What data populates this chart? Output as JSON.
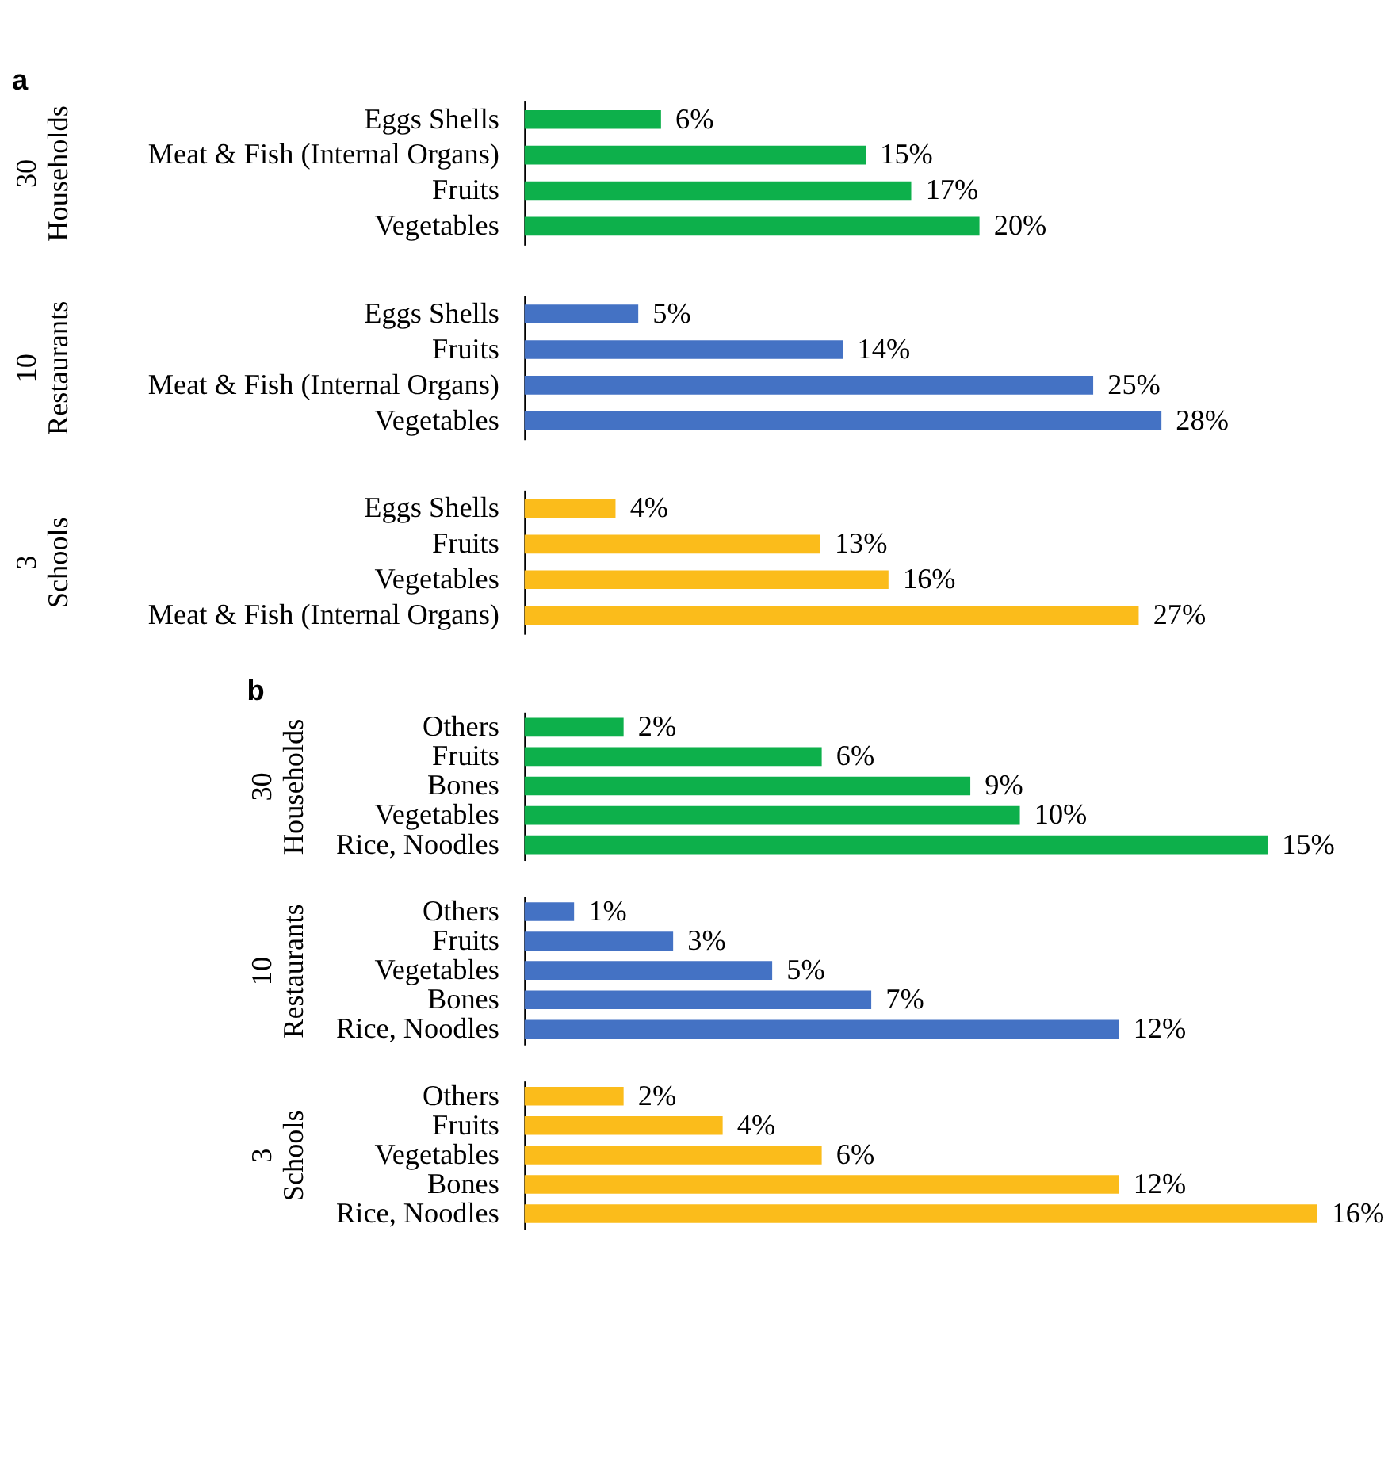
{
  "chart_data": [
    {
      "type": "bar",
      "orientation": "horizontal",
      "title": "a",
      "ylabel": "30 Households",
      "categories": [
        "Eggs Shells",
        "Meat & Fish (Internal Organs)",
        "Fruits",
        "Vegetables"
      ],
      "values": [
        6,
        15,
        17,
        20
      ],
      "value_labels": [
        "6%",
        "15%",
        "17%",
        "20%"
      ],
      "color": "#0db04b"
    },
    {
      "type": "bar",
      "orientation": "horizontal",
      "ylabel": "10 Restaurants",
      "categories": [
        "Eggs Shells",
        "Fruits",
        "Meat & Fish (Internal Organs)",
        "Vegetables"
      ],
      "values": [
        5,
        14,
        25,
        28
      ],
      "value_labels": [
        "5%",
        "14%",
        "25%",
        "28%"
      ],
      "color": "#4472c4"
    },
    {
      "type": "bar",
      "orientation": "horizontal",
      "ylabel": "3 Schools",
      "categories": [
        "Eggs Shells",
        "Fruits",
        "Vegetables",
        "Meat & Fish (Internal Organs)"
      ],
      "values": [
        4,
        13,
        16,
        27
      ],
      "value_labels": [
        "4%",
        "13%",
        "16%",
        "27%"
      ],
      "color": "#fbbc1b"
    },
    {
      "type": "bar",
      "orientation": "horizontal",
      "title": "b",
      "ylabel": "30 Households",
      "categories": [
        "Others",
        "Fruits",
        "Bones",
        "Vegetables",
        "Rice, Noodles"
      ],
      "values": [
        2,
        6,
        9,
        10,
        15
      ],
      "value_labels": [
        "2%",
        "6%",
        "9%",
        "10%",
        "15%"
      ],
      "color": "#0db04b"
    },
    {
      "type": "bar",
      "orientation": "horizontal",
      "ylabel": "10 Restaurants",
      "categories": [
        "Others",
        "Fruits",
        "Vegetables",
        "Bones",
        "Rice, Noodles"
      ],
      "values": [
        1,
        3,
        5,
        7,
        12
      ],
      "value_labels": [
        "1%",
        "3%",
        "5%",
        "7%",
        "12%"
      ],
      "color": "#4472c4"
    },
    {
      "type": "bar",
      "orientation": "horizontal",
      "ylabel": "3 Schools",
      "categories": [
        "Others",
        "Fruits",
        "Vegetables",
        "Bones",
        "Rice, Noodles"
      ],
      "values": [
        2,
        4,
        6,
        12,
        16
      ],
      "value_labels": [
        "2%",
        "4%",
        "6%",
        "12%",
        "16%"
      ],
      "color": "#fbbc1b"
    }
  ]
}
